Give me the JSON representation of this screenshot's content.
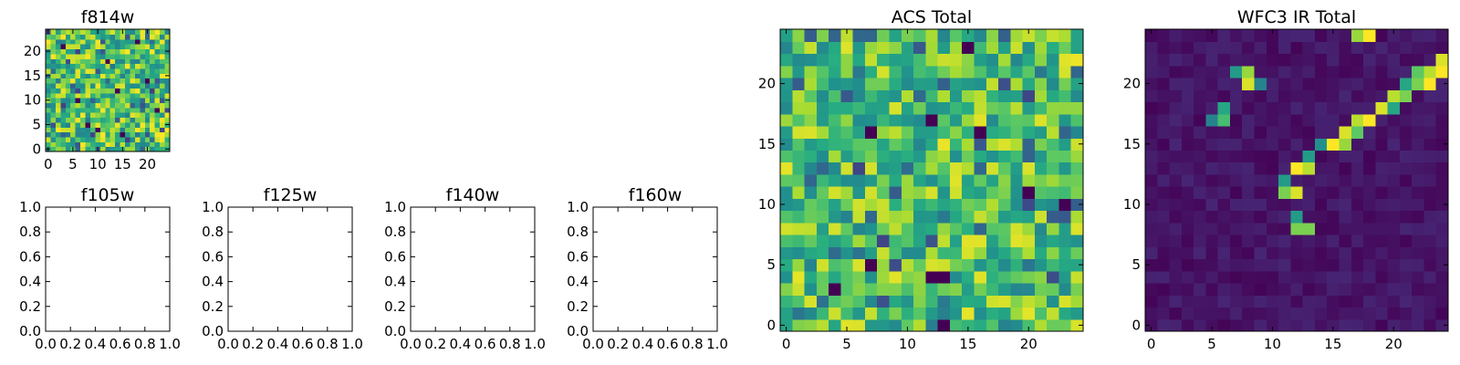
{
  "chart_data": [
    {
      "id": "f814w",
      "type": "heatmap",
      "title": "f814w",
      "colormap": "viridis",
      "shape": [
        25,
        25
      ],
      "value_range": [
        0,
        1
      ],
      "x_ticks": [
        0,
        5,
        10,
        15,
        20
      ],
      "y_ticks": [
        0,
        5,
        10,
        15,
        20
      ],
      "x_tick_labels": [
        "0",
        "5",
        "10",
        "15",
        "20"
      ],
      "y_tick_labels": [
        "0",
        "5",
        "10",
        "15",
        "20"
      ],
      "pattern": "noise",
      "seed": 17,
      "mean": 0.72,
      "spread": 0.28,
      "low_pixels": [
        [
          3,
          21
        ],
        [
          8,
          5
        ],
        [
          12,
          18
        ],
        [
          15,
          3
        ],
        [
          20,
          14
        ],
        [
          6,
          10
        ],
        [
          10,
          4
        ],
        [
          18,
          22
        ],
        [
          22,
          8
        ],
        [
          14,
          12
        ]
      ],
      "high_pixels": []
    },
    {
      "id": "f105w",
      "type": "heatmap",
      "title": "f105w",
      "empty": true,
      "xlim": [
        0,
        1
      ],
      "ylim": [
        0,
        1
      ],
      "x_tick_labels": [
        "0.0",
        "0.2",
        "0.4",
        "0.6",
        "0.8",
        "1.0"
      ],
      "y_tick_labels": [
        "0.0",
        "0.2",
        "0.4",
        "0.6",
        "0.8",
        "1.0"
      ]
    },
    {
      "id": "f125w",
      "type": "heatmap",
      "title": "f125w",
      "empty": true,
      "xlim": [
        0,
        1
      ],
      "ylim": [
        0,
        1
      ],
      "x_tick_labels": [
        "0.0",
        "0.2",
        "0.4",
        "0.6",
        "0.8",
        "1.0"
      ],
      "y_tick_labels": [
        "0.0",
        "0.2",
        "0.4",
        "0.6",
        "0.8",
        "1.0"
      ]
    },
    {
      "id": "f140w",
      "type": "heatmap",
      "title": "f140w",
      "empty": true,
      "xlim": [
        0,
        1
      ],
      "ylim": [
        0,
        1
      ],
      "x_tick_labels": [
        "0.0",
        "0.2",
        "0.4",
        "0.6",
        "0.8",
        "1.0"
      ],
      "y_tick_labels": [
        "0.0",
        "0.2",
        "0.4",
        "0.6",
        "0.8",
        "1.0"
      ]
    },
    {
      "id": "f160w",
      "type": "heatmap",
      "title": "f160w",
      "empty": true,
      "xlim": [
        0,
        1
      ],
      "ylim": [
        0,
        1
      ],
      "x_tick_labels": [
        "0.0",
        "0.2",
        "0.4",
        "0.6",
        "0.8",
        "1.0"
      ],
      "y_tick_labels": [
        "0.0",
        "0.2",
        "0.4",
        "0.6",
        "0.8",
        "1.0"
      ]
    },
    {
      "id": "acs-total",
      "type": "heatmap",
      "title": "ACS Total",
      "colormap": "viridis",
      "shape": [
        25,
        25
      ],
      "value_range": [
        0,
        1
      ],
      "x_ticks": [
        0,
        5,
        10,
        15,
        20
      ],
      "y_ticks": [
        0,
        5,
        10,
        15,
        20
      ],
      "x_tick_labels": [
        "0",
        "5",
        "10",
        "15",
        "20"
      ],
      "y_tick_labels": [
        "0",
        "5",
        "10",
        "15",
        "20"
      ],
      "pattern": "noise",
      "seed": 29,
      "mean": 0.72,
      "spread": 0.26,
      "low_pixels": [
        [
          15,
          23
        ],
        [
          7,
          16
        ],
        [
          16,
          16
        ],
        [
          20,
          11
        ],
        [
          23,
          10
        ],
        [
          7,
          5
        ],
        [
          12,
          4
        ],
        [
          13,
          4
        ],
        [
          13,
          0
        ],
        [
          4,
          3
        ],
        [
          12,
          17
        ]
      ],
      "high_pixels": []
    },
    {
      "id": "wfc3-ir-total",
      "type": "heatmap",
      "title": "WFC3 IR Total",
      "colormap": "viridis",
      "shape": [
        25,
        25
      ],
      "value_range": [
        0,
        1
      ],
      "x_ticks": [
        0,
        5,
        10,
        15,
        20
      ],
      "y_ticks": [
        0,
        5,
        10,
        15,
        20
      ],
      "x_tick_labels": [
        "0",
        "5",
        "10",
        "15",
        "20"
      ],
      "y_tick_labels": [
        "0",
        "5",
        "10",
        "15",
        "20"
      ],
      "pattern": "background",
      "seed": 41,
      "mean": 0.06,
      "spread": 0.05,
      "low_pixels": [],
      "high_pixels": [
        [
          17,
          24,
          0.85
        ],
        [
          18,
          24,
          1.0
        ],
        [
          24,
          22,
          0.95
        ],
        [
          23,
          21,
          0.9
        ],
        [
          22,
          21,
          0.75
        ],
        [
          24,
          21,
          1.0
        ],
        [
          23,
          20,
          1.0
        ],
        [
          22,
          20,
          0.8
        ],
        [
          21,
          20,
          0.6
        ],
        [
          7,
          21,
          0.55
        ],
        [
          8,
          21,
          0.85
        ],
        [
          8,
          20,
          0.95
        ],
        [
          9,
          20,
          0.45
        ],
        [
          20,
          19,
          0.9
        ],
        [
          21,
          19,
          0.8
        ],
        [
          19,
          18,
          0.95
        ],
        [
          20,
          18,
          0.6
        ],
        [
          18,
          17,
          1.0
        ],
        [
          17,
          17,
          0.9
        ],
        [
          16,
          16,
          0.95
        ],
        [
          17,
          16,
          0.75
        ],
        [
          15,
          15,
          1.0
        ],
        [
          16,
          15,
          0.85
        ],
        [
          14,
          15,
          0.5
        ],
        [
          6,
          18,
          0.6
        ],
        [
          5,
          17,
          0.45
        ],
        [
          6,
          17,
          0.7
        ],
        [
          13,
          14,
          0.55
        ],
        [
          12,
          13,
          1.0
        ],
        [
          13,
          13,
          0.9
        ],
        [
          11,
          12,
          0.55
        ],
        [
          11,
          11,
          0.8
        ],
        [
          12,
          11,
          0.95
        ],
        [
          12,
          9,
          0.55
        ],
        [
          12,
          8,
          0.8
        ],
        [
          13,
          8,
          0.8
        ]
      ]
    }
  ]
}
